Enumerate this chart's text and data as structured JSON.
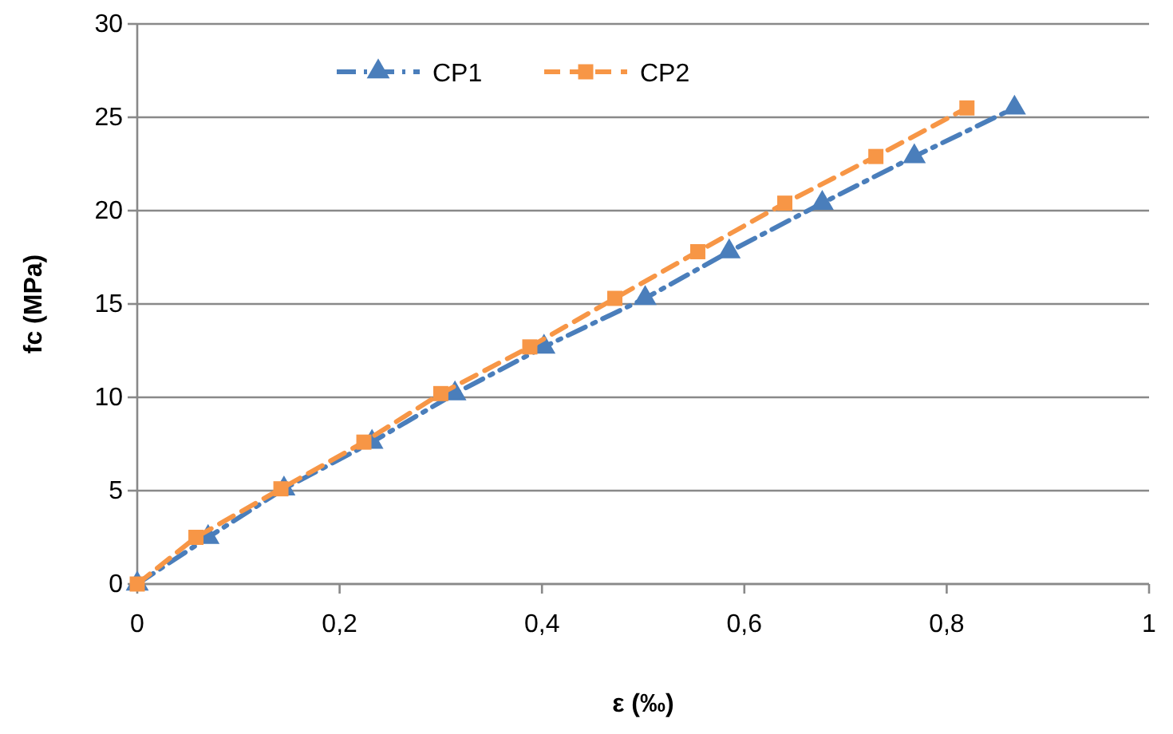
{
  "chart_data": {
    "type": "line",
    "xlabel": "ε (‰)",
    "ylabel": "fc (MPa)",
    "xlim": [
      0,
      1
    ],
    "xticks": [
      {
        "value": 0,
        "label": "0"
      },
      {
        "value": 0.2,
        "label": "0,2"
      },
      {
        "value": 0.4,
        "label": "0,4"
      },
      {
        "value": 0.6,
        "label": "0,6"
      },
      {
        "value": 0.8,
        "label": "0,8"
      },
      {
        "value": 1,
        "label": "1"
      }
    ],
    "ylim": [
      0,
      30
    ],
    "yticks": [
      0,
      5,
      10,
      15,
      20,
      25,
      30
    ],
    "grid": "y",
    "legend": "top",
    "series": [
      {
        "name": "CP1",
        "color": "#4a7ebb",
        "line_style": "dashdot",
        "marker": "triangle",
        "x": [
          0,
          0.07,
          0.145,
          0.232,
          0.314,
          0.402,
          0.502,
          0.585,
          0.677,
          0.768,
          0.867
        ],
        "values": [
          0,
          2.5,
          5.1,
          7.6,
          10.2,
          12.7,
          15.3,
          17.8,
          20.4,
          22.9,
          25.5
        ]
      },
      {
        "name": "CP2",
        "color": "#f79646",
        "line_style": "dashed",
        "marker": "square",
        "x": [
          0,
          0.058,
          0.142,
          0.224,
          0.3,
          0.388,
          0.472,
          0.554,
          0.64,
          0.73,
          0.82
        ],
        "values": [
          0,
          2.5,
          5.1,
          7.6,
          10.2,
          12.7,
          15.3,
          17.8,
          20.4,
          22.9,
          25.5
        ]
      }
    ]
  }
}
